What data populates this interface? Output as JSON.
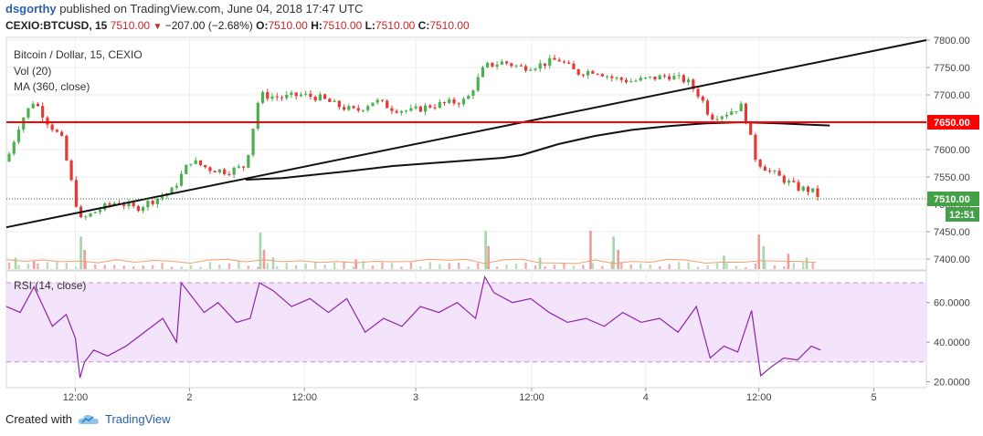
{
  "header": {
    "author": "dsgorthy",
    "published": "published on TradingView.com, June 04, 2018 17:47 UTC",
    "symbol": "CEXIO:BTCUSD, 15",
    "last": "7510.00",
    "change": "−207.00 (−2.68%)",
    "o_label": "O:",
    "o_val": "7510.00",
    "h_label": "H:",
    "h_val": "7510.00",
    "l_label": "L:",
    "l_val": "7510.00",
    "c_label": "C:",
    "c_val": "7510.00"
  },
  "legend": {
    "pair": "Bitcoin / Dollar, 15, CEXIO",
    "vol": "Vol (20)",
    "ma": "MA (360, close)",
    "rsi": "RSI (14, close)"
  },
  "footer": {
    "created": "Created with",
    "brand": "TradingView"
  },
  "colors": {
    "up": "#4caf50",
    "down": "#e53935",
    "level": "#ff0000",
    "rsi_line": "#8e24aa",
    "rsi_band": "#f3e3fb"
  },
  "chart_data": [
    {
      "type": "candlestick",
      "title": "Bitcoin / Dollar, 15, CEXIO",
      "x_ticks": [
        "12:00",
        "2",
        "12:00",
        "3",
        "12:00",
        "4",
        "12:00",
        "5"
      ],
      "y_ticks": [
        "7800.00",
        "7750.00",
        "7700.00",
        "7650.00",
        "7600.00",
        "7550.00",
        "7500.00",
        "7450.00",
        "7400.00"
      ],
      "ylim": [
        7380,
        7805
      ],
      "price_labels": {
        "level": "7650.00",
        "last": "7510.00",
        "countdown": "12:51"
      },
      "horizontal_level": 7650,
      "trendline": {
        "from": {
          "x": 0,
          "y": 7458
        },
        "to": {
          "x": 100,
          "y": 7800
        }
      },
      "close_path": [
        [
          0,
          7578
        ],
        [
          1.5,
          7650
        ],
        [
          3,
          7690
        ],
        [
          4.5,
          7650
        ],
        [
          6,
          7620
        ],
        [
          8,
          7470
        ],
        [
          10,
          7490
        ],
        [
          12,
          7505
        ],
        [
          14,
          7492
        ],
        [
          16,
          7508
        ],
        [
          18,
          7525
        ],
        [
          20,
          7580
        ],
        [
          22,
          7565
        ],
        [
          24,
          7560
        ],
        [
          26,
          7570
        ],
        [
          27.5,
          7700
        ],
        [
          30,
          7695
        ],
        [
          32,
          7700
        ],
        [
          34,
          7695
        ],
        [
          36,
          7680
        ],
        [
          38,
          7670
        ],
        [
          40,
          7690
        ],
        [
          42,
          7675
        ],
        [
          44,
          7670
        ],
        [
          46,
          7680
        ],
        [
          48,
          7685
        ],
        [
          50,
          7690
        ],
        [
          52,
          7752
        ],
        [
          54,
          7760
        ],
        [
          56,
          7750
        ],
        [
          58,
          7755
        ],
        [
          60,
          7765
        ],
        [
          62,
          7740
        ],
        [
          64,
          7745
        ],
        [
          66,
          7730
        ],
        [
          68,
          7725
        ],
        [
          70,
          7730
        ],
        [
          72,
          7735
        ],
        [
          74,
          7725
        ],
        [
          75.5,
          7695
        ],
        [
          76.5,
          7660
        ],
        [
          78,
          7665
        ],
        [
          80,
          7680
        ],
        [
          81.5,
          7580
        ],
        [
          83,
          7560
        ],
        [
          84.5,
          7545
        ],
        [
          86,
          7530
        ],
        [
          87.5,
          7525
        ],
        [
          88.5,
          7512
        ]
      ],
      "ma_path": [
        [
          26,
          7545
        ],
        [
          30,
          7548
        ],
        [
          34,
          7555
        ],
        [
          38,
          7562
        ],
        [
          42,
          7570
        ],
        [
          46,
          7575
        ],
        [
          50,
          7580
        ],
        [
          54,
          7585
        ],
        [
          56,
          7590
        ],
        [
          58,
          7600
        ],
        [
          60,
          7610
        ],
        [
          64,
          7625
        ],
        [
          68,
          7636
        ],
        [
          72,
          7643
        ],
        [
          76,
          7648
        ],
        [
          80,
          7650
        ],
        [
          84,
          7648
        ],
        [
          88,
          7645
        ],
        [
          89.5,
          7644
        ]
      ],
      "volume": {
        "spikes": [
          [
            1,
            0.3
          ],
          [
            3,
            0.2
          ],
          [
            8.1,
            0.85
          ],
          [
            8.5,
            0.5
          ],
          [
            27.6,
            0.95
          ],
          [
            28,
            0.5
          ],
          [
            29,
            0.3
          ],
          [
            38,
            0.25
          ],
          [
            52.1,
            1.0
          ],
          [
            52.4,
            0.6
          ],
          [
            58,
            0.3
          ],
          [
            63.5,
            1.0
          ],
          [
            66,
            0.85
          ],
          [
            66.5,
            0.5
          ],
          [
            78,
            0.35
          ],
          [
            81.8,
            0.9
          ],
          [
            82.3,
            0.6
          ],
          [
            85,
            0.4
          ],
          [
            87,
            0.3
          ]
        ]
      }
    },
    {
      "type": "line",
      "title": "RSI (14, close)",
      "y_ticks": [
        "60.0000",
        "40.0000",
        "20.0000"
      ],
      "ylim": [
        17,
        76
      ],
      "bands": [
        70,
        30
      ],
      "x": [
        0,
        1.5,
        3,
        5,
        6.5,
        7.5,
        8,
        8.5,
        9.5,
        11,
        13,
        15,
        17,
        18.5,
        19,
        20,
        21.5,
        23,
        25,
        26.5,
        27.5,
        29,
        31,
        33,
        35,
        37,
        39,
        41,
        43,
        45,
        47,
        49,
        51,
        52,
        53,
        55,
        57,
        59,
        61,
        63,
        65,
        67,
        69,
        71,
        73,
        75,
        76.5,
        78,
        79.5,
        81,
        82,
        83,
        84.5,
        86,
        87.5,
        88.5
      ],
      "y": [
        58,
        55,
        68,
        48,
        54,
        42,
        22,
        30,
        36,
        33,
        38,
        45,
        52,
        40,
        70,
        64,
        55,
        60,
        50,
        52,
        70,
        66,
        58,
        62,
        55,
        62,
        45,
        52,
        48,
        58,
        55,
        60,
        52,
        73,
        65,
        60,
        62,
        55,
        50,
        52,
        48,
        55,
        50,
        52,
        45,
        58,
        32,
        38,
        35,
        56,
        23,
        27,
        32,
        31,
        38,
        36
      ]
    }
  ]
}
